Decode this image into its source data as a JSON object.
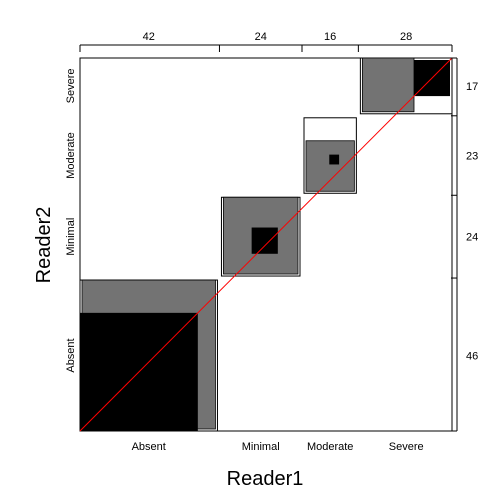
{
  "chart_data": {
    "type": "agreement",
    "xlabel": "Reader1",
    "ylabel": "Reader2",
    "x_categories": [
      "Absent",
      "Minimal",
      "Moderate",
      "Severe"
    ],
    "y_categories": [
      "Absent",
      "Minimal",
      "Moderate",
      "Severe"
    ],
    "col_totals": [
      42,
      24,
      16,
      28
    ],
    "row_totals": [
      46,
      24,
      23,
      17
    ],
    "partial_agreement": [
      46,
      24,
      16,
      17
    ],
    "exact_agreement": [
      36,
      8,
      3,
      11
    ],
    "diagonal_line": true,
    "colors": {
      "partial": "#737373",
      "exact": "#000000",
      "diagonal": "#ff0000"
    }
  }
}
